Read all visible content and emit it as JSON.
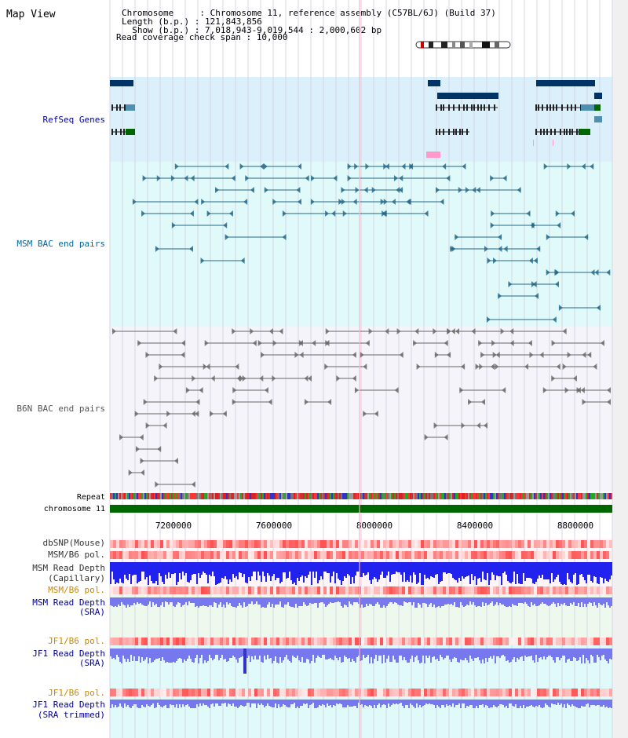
{
  "title": "Map View",
  "info": {
    "lines": [
      "Chromosome     : Chromosome 11, reference assembly (C57BL/6J) (Build 37)",
      "Length (b.p.) : 121,843,856",
      "  Show (b.p.) : 7,018,943-9,019,544 : 2,000,602 bp",
      "Read coverage check span : 10,000"
    ]
  },
  "tracks": {
    "refseq": "RefSeq Genes",
    "msm_bac": "MSM BAC end pairs",
    "b6n_bac": "B6N BAC end pairs",
    "repeat": "Repeat",
    "chromosome": "chromosome 11",
    "dbsnp": "dbSNP(Mouse)",
    "msm_b6_pol_1": "MSM/B6 pol.",
    "msm_read_depth_cap_1": "MSM Read Depth",
    "msm_read_depth_cap_2": "(Capillary)",
    "msm_b6_pol_2": "MSM/B6 pol.",
    "msm_read_depth_sra_1": "MSM Read Depth",
    "msm_read_depth_sra_2": "(SRA)",
    "jf1_b6_pol_1": "JF1/B6 pol.",
    "jf1_read_depth_sra_1": "JF1 Read Depth",
    "jf1_read_depth_sra_2": "(SRA)",
    "jf1_b6_pol_2": "JF1/B6 pol.",
    "jf1_read_depth_trim_1": "JF1 Read Depth",
    "jf1_read_depth_trim_2": "(SRA trimmed)"
  },
  "axis": {
    "range": [
      7018943,
      9019544
    ],
    "ticks": [
      "7200000",
      "7600000",
      "8000000",
      "8400000",
      "8800000"
    ]
  },
  "colors": {
    "refseq_bg": "#dbf0fb",
    "msm_bg": "#e0fafa",
    "b6n_bg": "#f4f4fa",
    "gene_dark": "#003366",
    "gene_teal": "#4f8fb0",
    "gene_green": "#006600",
    "msm_line": "#226688",
    "b6n_line": "#666666",
    "chrom_bar": "#006600",
    "label_blue": "#000099",
    "label_orange": "#cc8800",
    "label_teal": "#006699"
  }
}
